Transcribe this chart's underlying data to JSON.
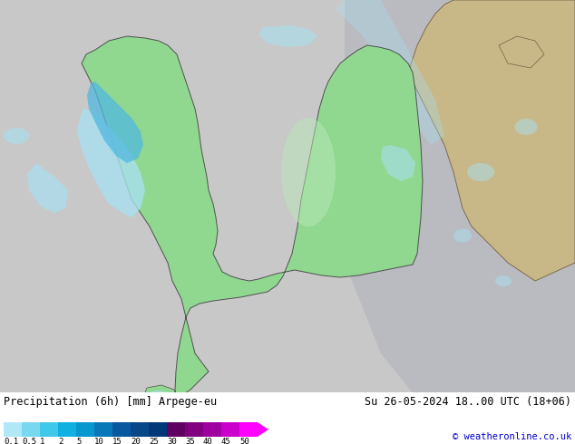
{
  "title_left": "Precipitation (6h) [mm] Arpege-eu",
  "title_right": "Su 26-05-2024 18..00 UTC (18+06)",
  "copyright": "© weatheronline.co.uk",
  "colorbar_levels": [
    0.1,
    0.5,
    1,
    2,
    5,
    10,
    15,
    20,
    25,
    30,
    35,
    40,
    45,
    50
  ],
  "colorbar_colors": [
    "#b0e8f8",
    "#78d8f0",
    "#40c8e8",
    "#10b0e0",
    "#0898d0",
    "#0878b8",
    "#0858a0",
    "#084888",
    "#003878",
    "#600060",
    "#800080",
    "#a000a0",
    "#cc00cc",
    "#ff00ff"
  ],
  "bg_color": "#c8c8c8",
  "ocean_color": "#c8c8c8",
  "land_color": "#90d890",
  "land_light_color": "#b8e8b8",
  "russia_color": "#c8b888",
  "shadow_color": "#b0b0b8",
  "precip_light": "#a8e0f0",
  "precip_mid": "#50b8e0",
  "precip_dark": "#1878c0",
  "font_size_label": 8,
  "font_size_title": 9,
  "fig_width": 6.34,
  "fig_height": 4.9,
  "dpi": 100
}
